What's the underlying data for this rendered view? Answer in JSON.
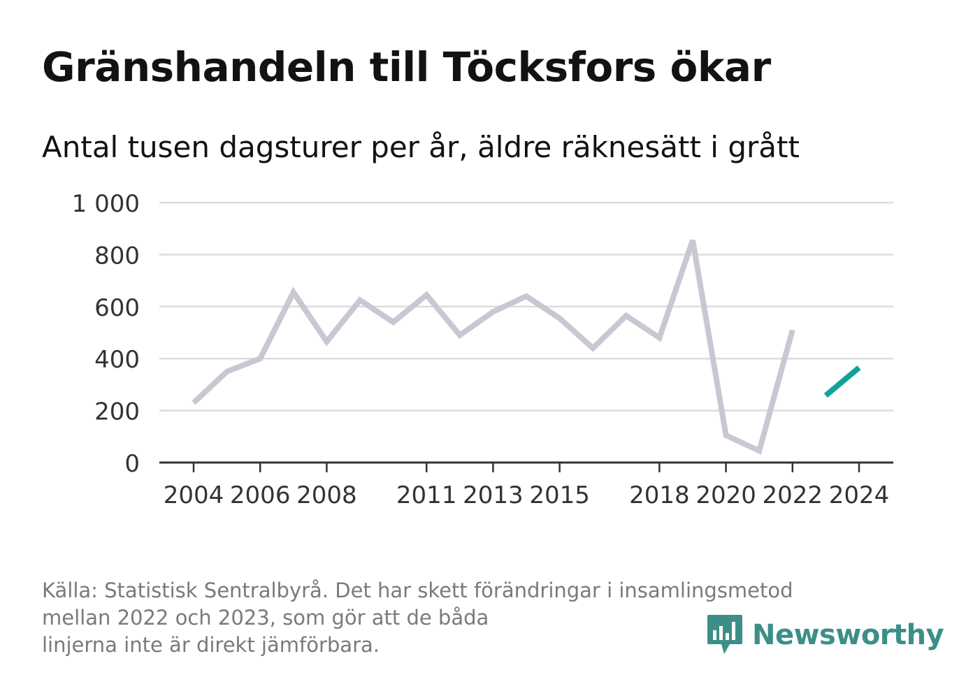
{
  "title": "Gränshandeln till Töcksfors ökar",
  "subtitle": "Antal tusen dagsturer per år, äldre räknesätt i grått",
  "footer": {
    "line1": "Källa: Statistisk Sentralbyrå. Det har skett förändringar i insamlingsmetod",
    "line2": "mellan 2022 och 2023, som gör att de båda",
    "line3": "linjerna inte är direkt jämförbara."
  },
  "logo": {
    "text": "Newsworthy",
    "icon": "newsworthy-chart-bubble-icon",
    "color": "#3c8f87"
  },
  "chart_data": {
    "type": "line",
    "ylim": [
      0,
      1000
    ],
    "xlim": [
      2004,
      2024
    ],
    "yticks": [
      0,
      200,
      400,
      600,
      800,
      1000
    ],
    "ytick_labels": [
      "0",
      "200",
      "400",
      "600",
      "800",
      "1 000"
    ],
    "xticks": [
      2004,
      2006,
      2008,
      2011,
      2013,
      2015,
      2018,
      2020,
      2022,
      2024
    ],
    "xtick_labels": [
      "2004",
      "2006",
      "2008",
      "2011",
      "2013",
      "2015",
      "2018",
      "2020",
      "2022",
      "2024"
    ],
    "grid": true,
    "series": [
      {
        "color": "#c8c8d2",
        "points": [
          {
            "x": 2004,
            "y": 230
          },
          {
            "x": 2005,
            "y": 350
          },
          {
            "x": 2006,
            "y": 400
          },
          {
            "x": 2007,
            "y": 655
          },
          {
            "x": 2008,
            "y": 465
          },
          {
            "x": 2009,
            "y": 625
          },
          {
            "x": 2010,
            "y": 540
          },
          {
            "x": 2011,
            "y": 645
          },
          {
            "x": 2012,
            "y": 490
          },
          {
            "x": 2013,
            "y": 580
          },
          {
            "x": 2014,
            "y": 640
          },
          {
            "x": 2015,
            "y": 555
          },
          {
            "x": 2016,
            "y": 440
          },
          {
            "x": 2017,
            "y": 565
          },
          {
            "x": 2018,
            "y": 480
          },
          {
            "x": 2019,
            "y": 855
          },
          {
            "x": 2020,
            "y": 105
          },
          {
            "x": 2021,
            "y": 45
          },
          {
            "x": 2022,
            "y": 510
          }
        ]
      },
      {
        "color": "#0fa39a",
        "points": [
          {
            "x": 2023,
            "y": 258
          },
          {
            "x": 2024,
            "y": 365
          }
        ]
      }
    ]
  }
}
